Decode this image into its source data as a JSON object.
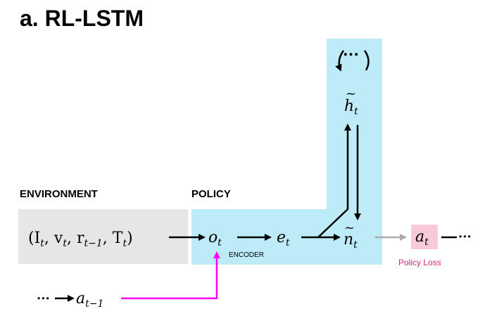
{
  "title": "a. RL-LSTM",
  "sections": {
    "environment": "ENVIRONMENT",
    "policy": "POLICY"
  },
  "nodes": {
    "env_input": {
      "base_1": "(I",
      "sub_1": "t",
      "base_2": ", v",
      "sub_2": "t",
      "base_3": ", r",
      "sub_3": "t−1",
      "base_4": ", T",
      "sub_4": "t",
      "base_5": ")"
    },
    "obs": {
      "base": "o",
      "sub": "t"
    },
    "encoder_label": "ENCODER",
    "embed": {
      "base": "e",
      "sub": "t"
    },
    "ntm": {
      "tilde": "~",
      "base": "n",
      "sub": "t"
    },
    "hidden": {
      "tilde": "~",
      "base": "h",
      "sub": "t"
    },
    "recurrence_dots": "···",
    "action": {
      "base": "a",
      "sub": "t"
    },
    "action_trailing_dots": "···",
    "policy_loss": "Policy Loss",
    "prev_action": {
      "base": "a",
      "sub": "t−1"
    },
    "prev_action_leading_dots": "···"
  },
  "colors": {
    "policy_bg": "#bdebf7",
    "environment_bg": "#e6e6e6",
    "action_bg": "#f8c9d9",
    "policy_loss_text": "#e0267a",
    "prev_action_arrow": "#ff00ff",
    "grey_arrow": "#aaaaaa",
    "black": "#000000"
  }
}
